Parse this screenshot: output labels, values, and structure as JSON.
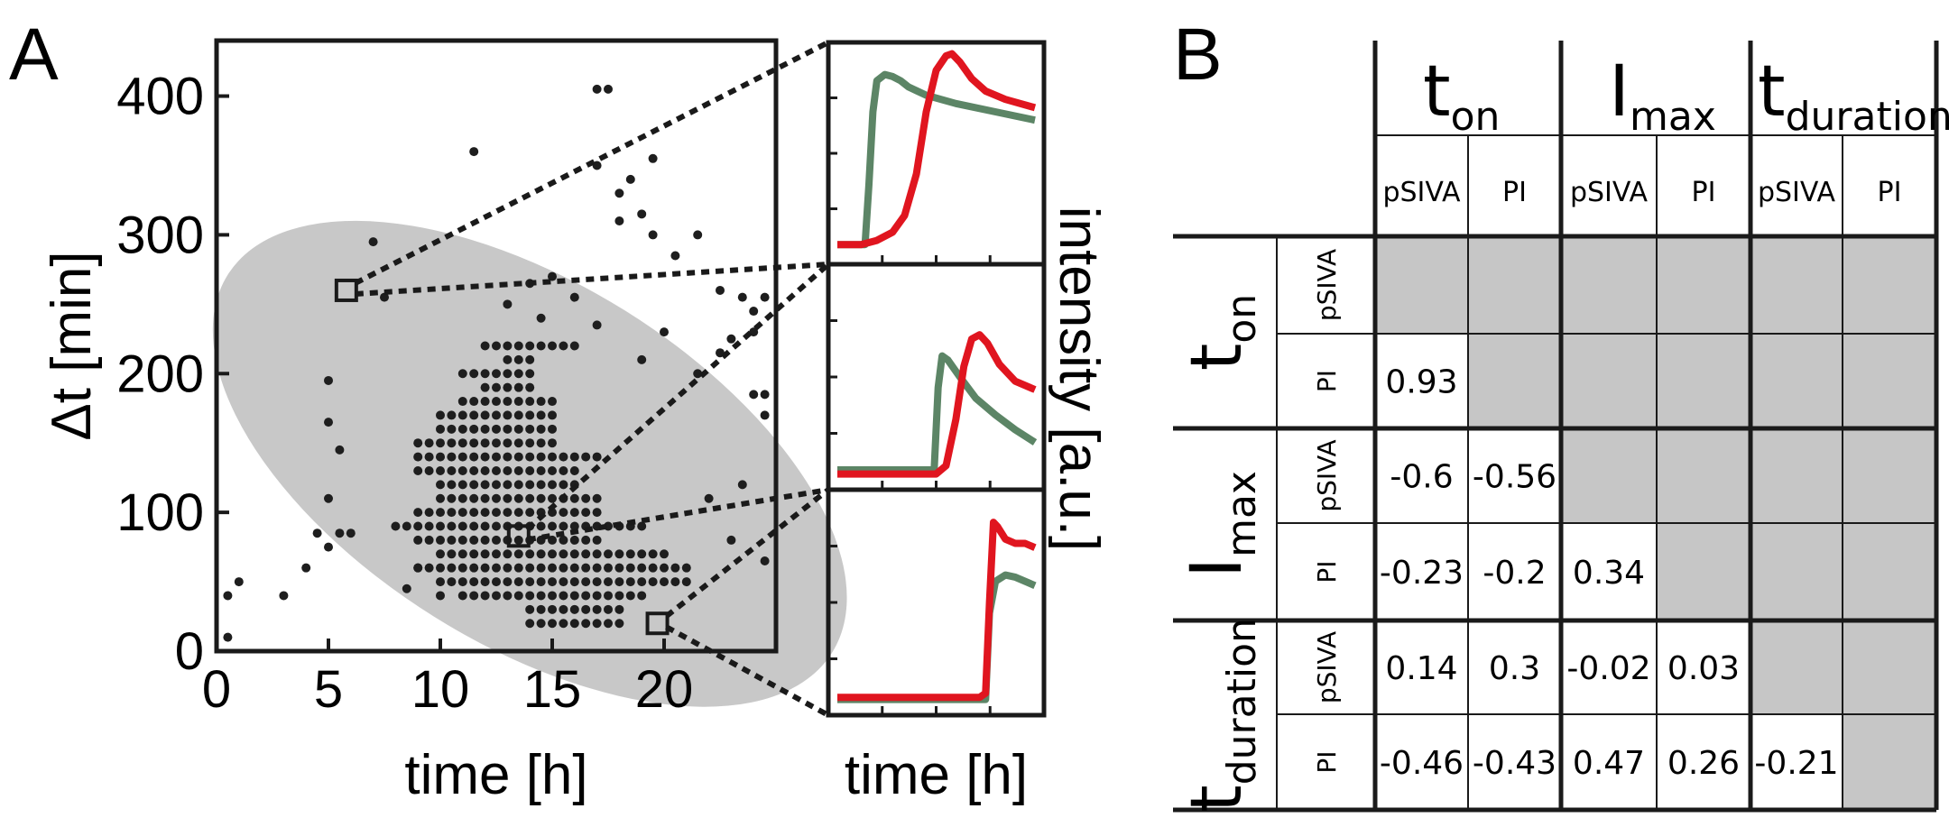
{
  "panels": {
    "a_label": "A",
    "b_label": "B"
  },
  "chart_data": [
    {
      "type": "scatter",
      "panel": "A",
      "xlabel": "time [h]",
      "ylabel": "Δt [min]",
      "xlim": [
        0,
        25
      ],
      "ylim": [
        0,
        440
      ],
      "xticks": [
        "0",
        "5",
        "10",
        "15",
        "20"
      ],
      "xtick_values": [
        0,
        5,
        10,
        15,
        20
      ],
      "yticks": [
        "0",
        "100",
        "200",
        "300",
        "400"
      ],
      "ytick_values": [
        0,
        100,
        200,
        300,
        400
      ],
      "points_note": "black dots are per-cell measurements; points outside the grey region are listed individually, the dense central cluster is read as the remaining estimated points",
      "outliers": [
        [
          0.5,
          40
        ],
        [
          1.0,
          50
        ],
        [
          3.0,
          40
        ],
        [
          4.0,
          60
        ],
        [
          4.5,
          85
        ],
        [
          5.0,
          195
        ],
        [
          5.0,
          165
        ],
        [
          5.5,
          145
        ],
        [
          5.0,
          75
        ],
        [
          5.0,
          110
        ],
        [
          5.5,
          85
        ],
        [
          6.0,
          85
        ],
        [
          7.0,
          295
        ],
        [
          7.5,
          255
        ],
        [
          8.5,
          45
        ],
        [
          9.0,
          60
        ],
        [
          10.0,
          40
        ],
        [
          11.5,
          360
        ],
        [
          17.0,
          405
        ],
        [
          17.5,
          405
        ],
        [
          17.0,
          350
        ],
        [
          18.0,
          330
        ],
        [
          18.5,
          340
        ],
        [
          18.0,
          310
        ],
        [
          19.0,
          315
        ],
        [
          19.5,
          355
        ],
        [
          19.5,
          300
        ],
        [
          20.5,
          285
        ],
        [
          21.5,
          300
        ],
        [
          22.5,
          260
        ],
        [
          23.5,
          255
        ],
        [
          24.0,
          245
        ],
        [
          24.5,
          255
        ],
        [
          24.0,
          230
        ],
        [
          23.0,
          225
        ],
        [
          22.5,
          215
        ],
        [
          21.5,
          200
        ],
        [
          24.0,
          185
        ],
        [
          24.5,
          185
        ],
        [
          24.5,
          170
        ],
        [
          23.5,
          120
        ],
        [
          22.0,
          110
        ],
        [
          23.0,
          80
        ],
        [
          24.5,
          65
        ],
        [
          0.5,
          10
        ],
        [
          14.0,
          265
        ],
        [
          15.0,
          270
        ],
        [
          16.0,
          255
        ],
        [
          17.0,
          235
        ],
        [
          13.0,
          250
        ],
        [
          14.5,
          240
        ],
        [
          19.0,
          210
        ],
        [
          20.0,
          230
        ]
      ],
      "highlighted_points": [
        [
          5.8,
          260
        ],
        [
          13.5,
          83
        ],
        [
          19.7,
          20
        ]
      ],
      "confidence_ellipse": {
        "center": [
          14.0,
          135
        ],
        "note": "grey shaded ellipse enclosing the bulk of the data"
      },
      "marker_color": "#1e1e1e",
      "ellipse_color": "#c8c8c8"
    },
    {
      "type": "line",
      "panel": "A-insets",
      "xlabel": "time [h]",
      "ylabel": "intensity [a.u.]",
      "series_colors": {
        "pSIVA": "#5c8566",
        "PI": "#e0151f"
      },
      "insets": [
        {
          "series": [
            {
              "name": "pSIVA",
              "x": [
                0,
                0.1,
                0.14,
                0.16,
                0.18,
                0.2,
                0.24,
                0.28,
                0.32,
                0.36,
                0.45,
                0.6,
                0.8,
                1.0
              ],
              "y": [
                0.06,
                0.06,
                0.06,
                0.35,
                0.7,
                0.85,
                0.88,
                0.87,
                0.85,
                0.82,
                0.78,
                0.74,
                0.7,
                0.66
              ]
            },
            {
              "name": "PI",
              "x": [
                0,
                0.12,
                0.2,
                0.28,
                0.34,
                0.4,
                0.45,
                0.5,
                0.55,
                0.58,
                0.62,
                0.68,
                0.75,
                0.85,
                1.0
              ],
              "y": [
                0.06,
                0.06,
                0.08,
                0.12,
                0.2,
                0.4,
                0.7,
                0.9,
                0.97,
                0.98,
                0.94,
                0.86,
                0.8,
                0.76,
                0.72
              ]
            }
          ]
        },
        {
          "series": [
            {
              "name": "pSIVA",
              "x": [
                0,
                0.3,
                0.45,
                0.49,
                0.51,
                0.53,
                0.56,
                0.62,
                0.7,
                0.8,
                0.9,
                1.0
              ],
              "y": [
                0.06,
                0.06,
                0.06,
                0.06,
                0.45,
                0.6,
                0.58,
                0.5,
                0.4,
                0.32,
                0.25,
                0.19
              ]
            },
            {
              "name": "PI",
              "x": [
                0,
                0.3,
                0.5,
                0.55,
                0.6,
                0.64,
                0.68,
                0.72,
                0.76,
                0.82,
                0.9,
                1.0
              ],
              "y": [
                0.04,
                0.04,
                0.04,
                0.08,
                0.3,
                0.55,
                0.68,
                0.7,
                0.66,
                0.56,
                0.48,
                0.44
              ]
            }
          ]
        },
        {
          "series": [
            {
              "name": "pSIVA",
              "x": [
                0,
                0.5,
                0.72,
                0.75,
                0.77,
                0.8,
                0.85,
                0.9,
                0.95,
                1.0
              ],
              "y": [
                0.04,
                0.04,
                0.04,
                0.04,
                0.45,
                0.6,
                0.63,
                0.62,
                0.6,
                0.58
              ]
            },
            {
              "name": "PI",
              "x": [
                0,
                0.5,
                0.72,
                0.75,
                0.77,
                0.79,
                0.81,
                0.85,
                0.9,
                0.95,
                1.0
              ],
              "y": [
                0.05,
                0.05,
                0.05,
                0.07,
                0.5,
                0.88,
                0.86,
                0.8,
                0.78,
                0.78,
                0.76
              ]
            }
          ]
        }
      ]
    },
    {
      "type": "table",
      "panel": "B",
      "column_groups": [
        {
          "main": "t",
          "sub": "on"
        },
        {
          "main": "I",
          "sub": "max"
        },
        {
          "main": "t",
          "sub": "duration"
        }
      ],
      "row_groups": [
        {
          "main": "t",
          "sub": "on"
        },
        {
          "main": "I",
          "sub": "max"
        },
        {
          "main": "t",
          "sub": "duration"
        }
      ],
      "markers": [
        "pSIVA",
        "PI"
      ],
      "values": [
        [
          null,
          null,
          null,
          null,
          null,
          null
        ],
        [
          "0.93",
          null,
          null,
          null,
          null,
          null
        ],
        [
          "-0.6",
          "-0.56",
          null,
          null,
          null,
          null
        ],
        [
          "-0.23",
          "-0.2",
          "0.34",
          null,
          null,
          null
        ],
        [
          "0.14",
          "0.3",
          "-0.02",
          "0.03",
          null,
          null
        ],
        [
          "-0.46",
          "-0.43",
          "0.47",
          "0.26",
          "-0.21",
          null
        ]
      ],
      "blank_cell_color": "#c6c6c6"
    }
  ]
}
